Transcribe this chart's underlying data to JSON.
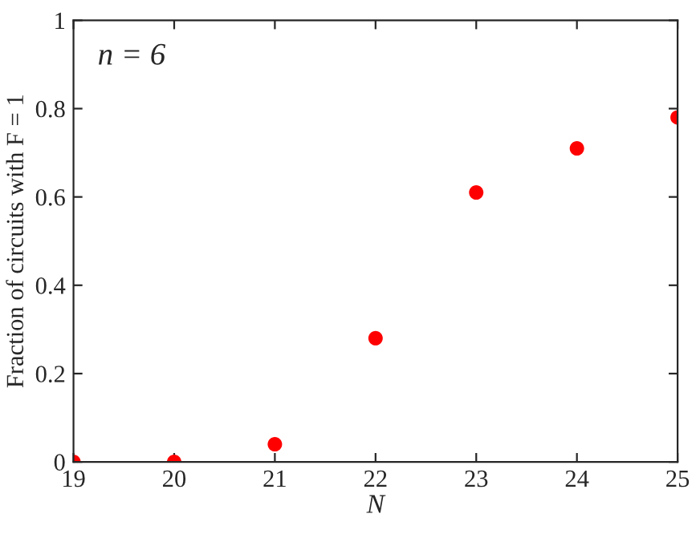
{
  "chart_data": {
    "type": "scatter",
    "xlabel": "N",
    "ylabel": "Fraction of circuits with F = 1",
    "annotations": [
      "n = 6"
    ],
    "x": [
      19,
      20,
      21,
      22,
      23,
      24,
      25
    ],
    "series": [
      {
        "color": "#ff0000",
        "values": [
          0,
          0,
          0.04,
          0.28,
          0.61,
          0.71,
          0.78
        ]
      }
    ],
    "marker": "circle",
    "xlim": [
      19,
      25
    ],
    "ylim": [
      0,
      1
    ],
    "xticks": [
      19,
      20,
      21,
      22,
      23,
      24,
      25
    ],
    "yticks": [
      0,
      0.2,
      0.4,
      0.6,
      0.8,
      1
    ]
  }
}
